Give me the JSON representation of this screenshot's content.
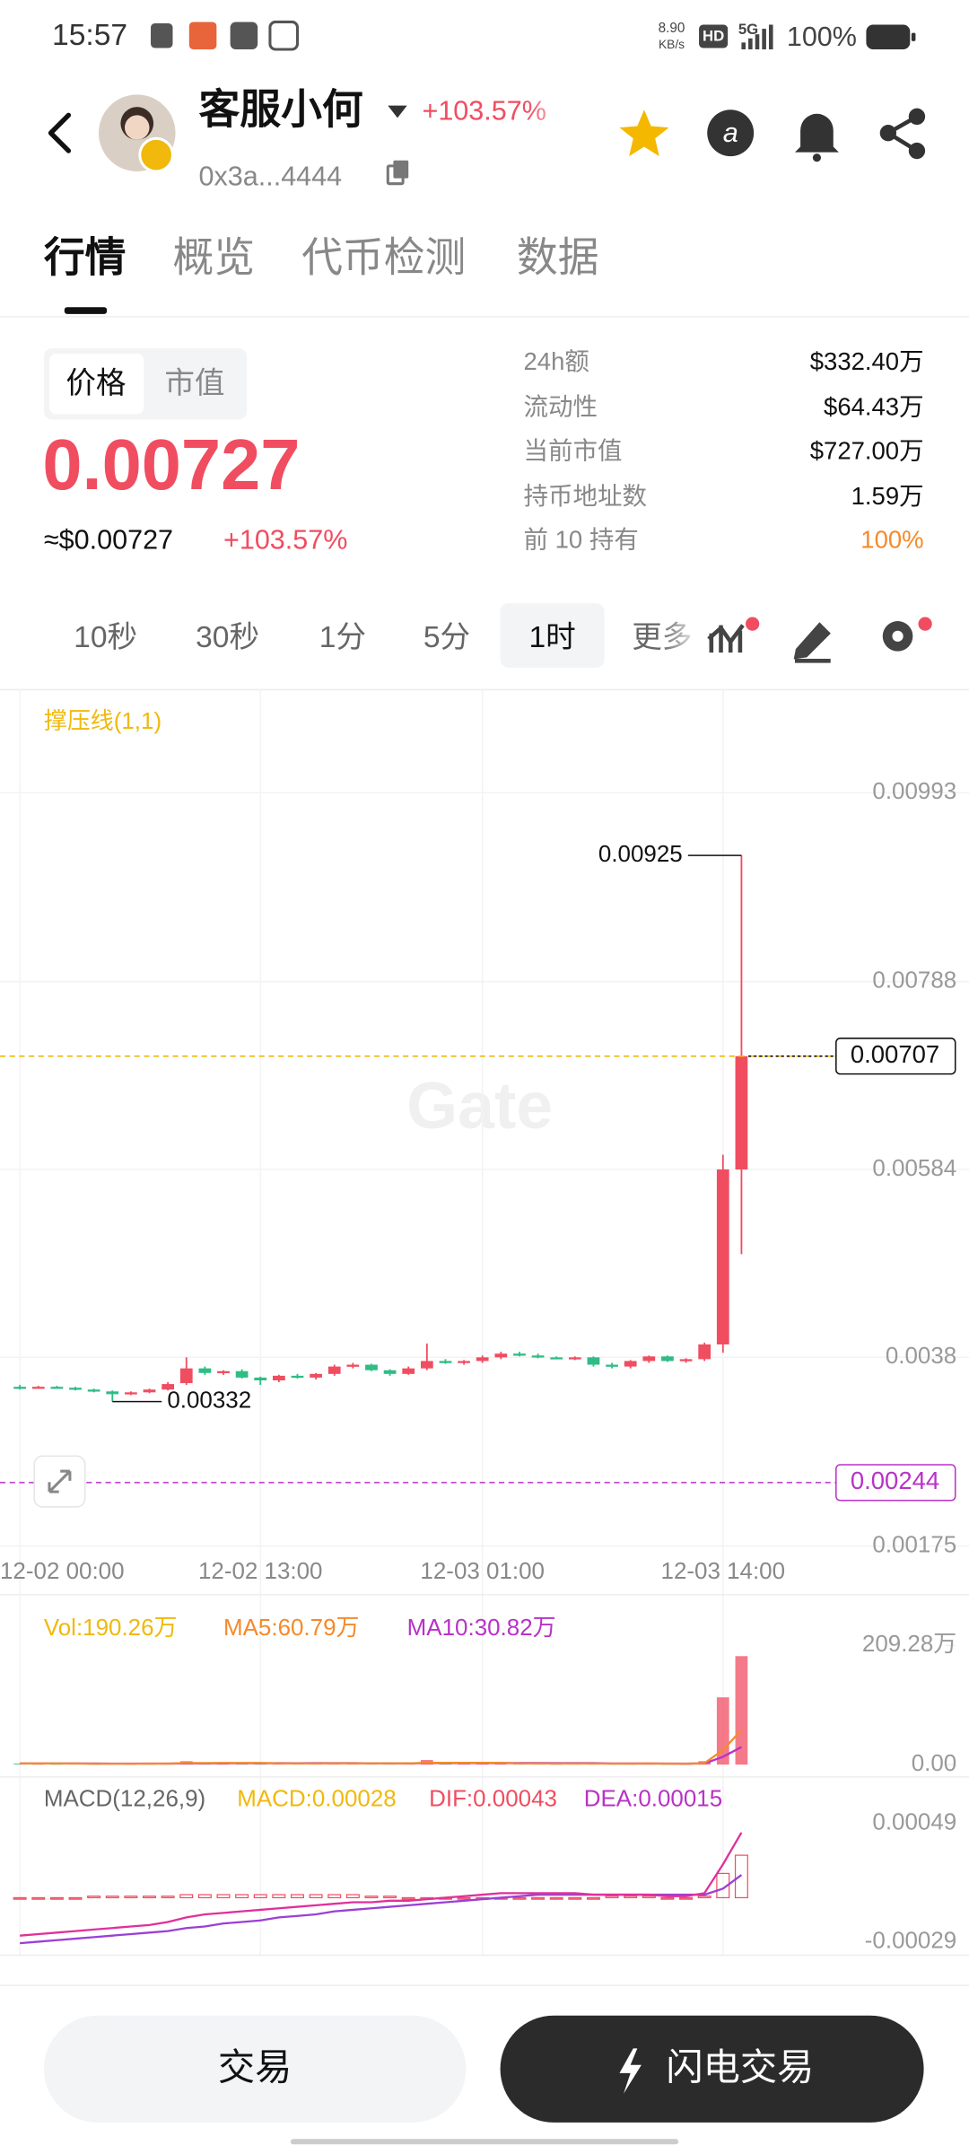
{
  "status_bar": {
    "time": "15:57",
    "speed": "8.90",
    "speed_unit": "KB/s",
    "hd": "HD",
    "network": "5G",
    "battery": "100%"
  },
  "header": {
    "name": "客服小何",
    "change": "+103.57%",
    "address": "0x3a...4444"
  },
  "tabs": [
    "行情",
    "概览",
    "代币检测",
    "数据"
  ],
  "price_panel": {
    "toggle": [
      "价格",
      "市值"
    ],
    "price": "0.00727",
    "usd_price": "≈$0.00727",
    "change": "+103.57%",
    "stats": [
      {
        "label": "24h额",
        "value": "$332.40万"
      },
      {
        "label": "流动性",
        "value": "$64.43万"
      },
      {
        "label": "当前市值",
        "value": "$727.00万"
      },
      {
        "label": "持币地址数",
        "value": "1.59万"
      },
      {
        "label": "前 10 持有",
        "value": "100%"
      }
    ]
  },
  "intervals": [
    "10秒",
    "30秒",
    "1分",
    "5分",
    "1时",
    "更多"
  ],
  "chart_data": {
    "type": "candlestick",
    "indicator_label": "撑压线(1,1)",
    "watermark": "Gate",
    "up_color": "#f04d61",
    "down_color": "#2ebd85",
    "grid": true,
    "categories": [
      "12-02 00:00",
      null,
      null,
      null,
      null,
      null,
      null,
      null,
      null,
      null,
      null,
      null,
      null,
      "12-02 13:00",
      null,
      null,
      null,
      null,
      null,
      null,
      null,
      null,
      null,
      null,
      null,
      "12-03 01:00",
      null,
      null,
      null,
      null,
      null,
      null,
      null,
      null,
      null,
      null,
      null,
      null,
      "12-03 14:00",
      null
    ],
    "open": [
      0.00348,
      0.00347,
      0.00348,
      0.00347,
      0.00345,
      0.00343,
      0.0034,
      0.00342,
      0.00345,
      0.00352,
      0.00368,
      0.00363,
      0.00365,
      0.00358,
      0.00355,
      0.0036,
      0.00358,
      0.00362,
      0.0037,
      0.00372,
      0.00366,
      0.00362,
      0.00368,
      0.00376,
      0.00374,
      0.00376,
      0.0038,
      0.00384,
      0.00382,
      0.0038,
      0.00379,
      0.0038,
      0.00372,
      0.0037,
      0.00376,
      0.00381,
      0.00376,
      0.00378,
      0.00394,
      0.00584
    ],
    "high": [
      0.0035,
      0.00349,
      0.00349,
      0.00348,
      0.00346,
      0.00344,
      0.00343,
      0.00346,
      0.00353,
      0.0038,
      0.0037,
      0.00366,
      0.00367,
      0.00359,
      0.00361,
      0.00362,
      0.00363,
      0.00372,
      0.00374,
      0.00373,
      0.00367,
      0.0037,
      0.00395,
      0.00378,
      0.00377,
      0.00382,
      0.00386,
      0.00386,
      0.00384,
      0.00381,
      0.00381,
      0.00381,
      0.00374,
      0.00377,
      0.00382,
      0.00382,
      0.00379,
      0.00396,
      0.006,
      0.00925
    ],
    "low": [
      0.00345,
      0.00346,
      0.00346,
      0.00344,
      0.00342,
      0.00332,
      0.00339,
      0.00341,
      0.00344,
      0.0035,
      0.00361,
      0.00361,
      0.00357,
      0.0035,
      0.00353,
      0.00357,
      0.00356,
      0.0036,
      0.00368,
      0.00365,
      0.0036,
      0.00361,
      0.00366,
      0.00373,
      0.00372,
      0.00374,
      0.00378,
      0.00381,
      0.00379,
      0.00378,
      0.00377,
      0.0037,
      0.00368,
      0.00368,
      0.00374,
      0.00375,
      0.00374,
      0.00376,
      0.00385,
      0.00492
    ],
    "close": [
      0.00347,
      0.00348,
      0.00347,
      0.00345,
      0.00343,
      0.0034,
      0.00342,
      0.00345,
      0.00351,
      0.00368,
      0.00363,
      0.00365,
      0.00358,
      0.00355,
      0.0036,
      0.00358,
      0.00362,
      0.0037,
      0.00372,
      0.00366,
      0.00362,
      0.00368,
      0.00376,
      0.00374,
      0.00376,
      0.0038,
      0.00384,
      0.00382,
      0.0038,
      0.00379,
      0.0038,
      0.00372,
      0.0037,
      0.00376,
      0.00381,
      0.00376,
      0.00378,
      0.00394,
      0.00584,
      0.00707
    ],
    "ylim": [
      0.0017,
      0.01105
    ],
    "yticks": [
      0.00175,
      0.0038,
      0.00584,
      0.00788,
      0.00993
    ],
    "price_lines": [
      {
        "value": 0.00707,
        "color": "#f0b90b"
      },
      {
        "value": 0.00244,
        "color": "#b832c7"
      }
    ],
    "high_label": 0.00925,
    "low_label": 0.00332,
    "volume": {
      "label": "Vol:190.26万",
      "ma5_label": "MA5:60.79万",
      "ma10_label": "MA10:30.82万",
      "label_color": "#f0b90b",
      "ma5_color": "#f58a2a",
      "ma10_color": "#b832c7",
      "values": [
        2,
        1,
        1,
        2,
        1,
        3,
        1,
        2,
        2,
        6,
        3,
        2,
        2,
        2,
        2,
        2,
        2,
        3,
        2,
        2,
        2,
        2,
        8,
        2,
        2,
        2,
        2,
        2,
        2,
        1,
        2,
        2,
        2,
        2,
        2,
        1,
        1,
        6,
        118,
        190.26
      ],
      "ma5": [
        2,
        2,
        2,
        2,
        1.4,
        1.6,
        1.6,
        1.8,
        1.8,
        2.8,
        2.8,
        3,
        3,
        3,
        2.2,
        2,
        2,
        2.2,
        2.2,
        2.2,
        2.2,
        2.2,
        3.2,
        3.2,
        3.2,
        3.2,
        3.2,
        2,
        2,
        1.8,
        1.8,
        1.8,
        1.8,
        1.8,
        2,
        1.8,
        1.6,
        2.4,
        25.6,
        60.79
      ],
      "ma10": [
        2,
        2,
        2,
        2,
        2,
        1.8,
        1.8,
        1.8,
        1.8,
        2.1,
        2.2,
        2.3,
        2.4,
        2.4,
        2.5,
        2.4,
        2.5,
        2.6,
        2.6,
        2.2,
        2.1,
        2.1,
        2.7,
        2.7,
        2.7,
        2.7,
        2.7,
        2.7,
        2.7,
        2.5,
        2.5,
        2.5,
        1.9,
        1.9,
        1.9,
        1.8,
        1.7,
        2.1,
        13.7,
        30.82
      ],
      "ylim": [
        0,
        209.28
      ],
      "yticks": [
        {
          "value": 0,
          "label": "0.00"
        },
        {
          "value": 209.28,
          "label": "209.28万"
        }
      ]
    },
    "macd": {
      "label": "MACD(12,26,9)",
      "macd_label": "MACD:0.00028",
      "dif_label": "DIF:0.00043",
      "dea_label": "DEA:0.00015",
      "macd_color": "#f0b90b",
      "dif_color": "#e0309a",
      "dea_color": "#9b3fd6",
      "histogram": [
        -1e-05,
        -1e-05,
        -1e-05,
        -1e-05,
        1e-05,
        1e-05,
        1e-05,
        1e-05,
        1e-05,
        2e-05,
        2e-05,
        2e-05,
        2e-05,
        2e-05,
        2e-05,
        2e-05,
        2e-05,
        2e-05,
        2e-05,
        1e-05,
        1e-05,
        -1e-05,
        -1e-05,
        -1e-05,
        -1e-05,
        -1e-05,
        -1e-05,
        -1e-05,
        -1e-05,
        -1e-05,
        -1e-05,
        -1e-05,
        1e-05,
        1e-05,
        1e-05,
        -1e-05,
        -1e-05,
        1e-05,
        0.00016,
        0.00028
      ],
      "dif": [
        -0.00025,
        -0.00024,
        -0.00023,
        -0.00022,
        -0.00021,
        -0.0002,
        -0.00019,
        -0.00018,
        -0.00016,
        -0.00013,
        -0.00011,
        -0.0001,
        -9e-05,
        -8e-05,
        -7e-05,
        -6e-05,
        -5e-05,
        -4e-05,
        -3e-05,
        -3e-05,
        -2e-05,
        -2e-05,
        -1e-05,
        0,
        1e-05,
        2e-05,
        3e-05,
        3e-05,
        3e-05,
        3e-05,
        3e-05,
        2e-05,
        2e-05,
        2e-05,
        2e-05,
        1e-05,
        1e-05,
        3e-05,
        0.00022,
        0.00043
      ],
      "dea": [
        -0.0003,
        -0.00029,
        -0.00028,
        -0.00027,
        -0.00026,
        -0.00025,
        -0.00024,
        -0.00023,
        -0.00022,
        -0.0002,
        -0.00019,
        -0.00017,
        -0.00016,
        -0.00015,
        -0.00013,
        -0.00012,
        -0.00011,
        -9e-05,
        -8e-05,
        -7e-05,
        -6e-05,
        -5e-05,
        -4e-05,
        -3e-05,
        -2e-05,
        -1e-05,
        0,
        1e-05,
        2e-05,
        2e-05,
        2e-05,
        2e-05,
        2e-05,
        2e-05,
        2e-05,
        2e-05,
        2e-05,
        2e-05,
        6e-05,
        0.00015
      ],
      "ylim": [
        -0.00037,
        0.00076
      ],
      "yticks": [
        -0.00029,
        0.00049
      ]
    }
  },
  "footer": {
    "trade": "交易",
    "flash_trade": "闪电交易"
  }
}
